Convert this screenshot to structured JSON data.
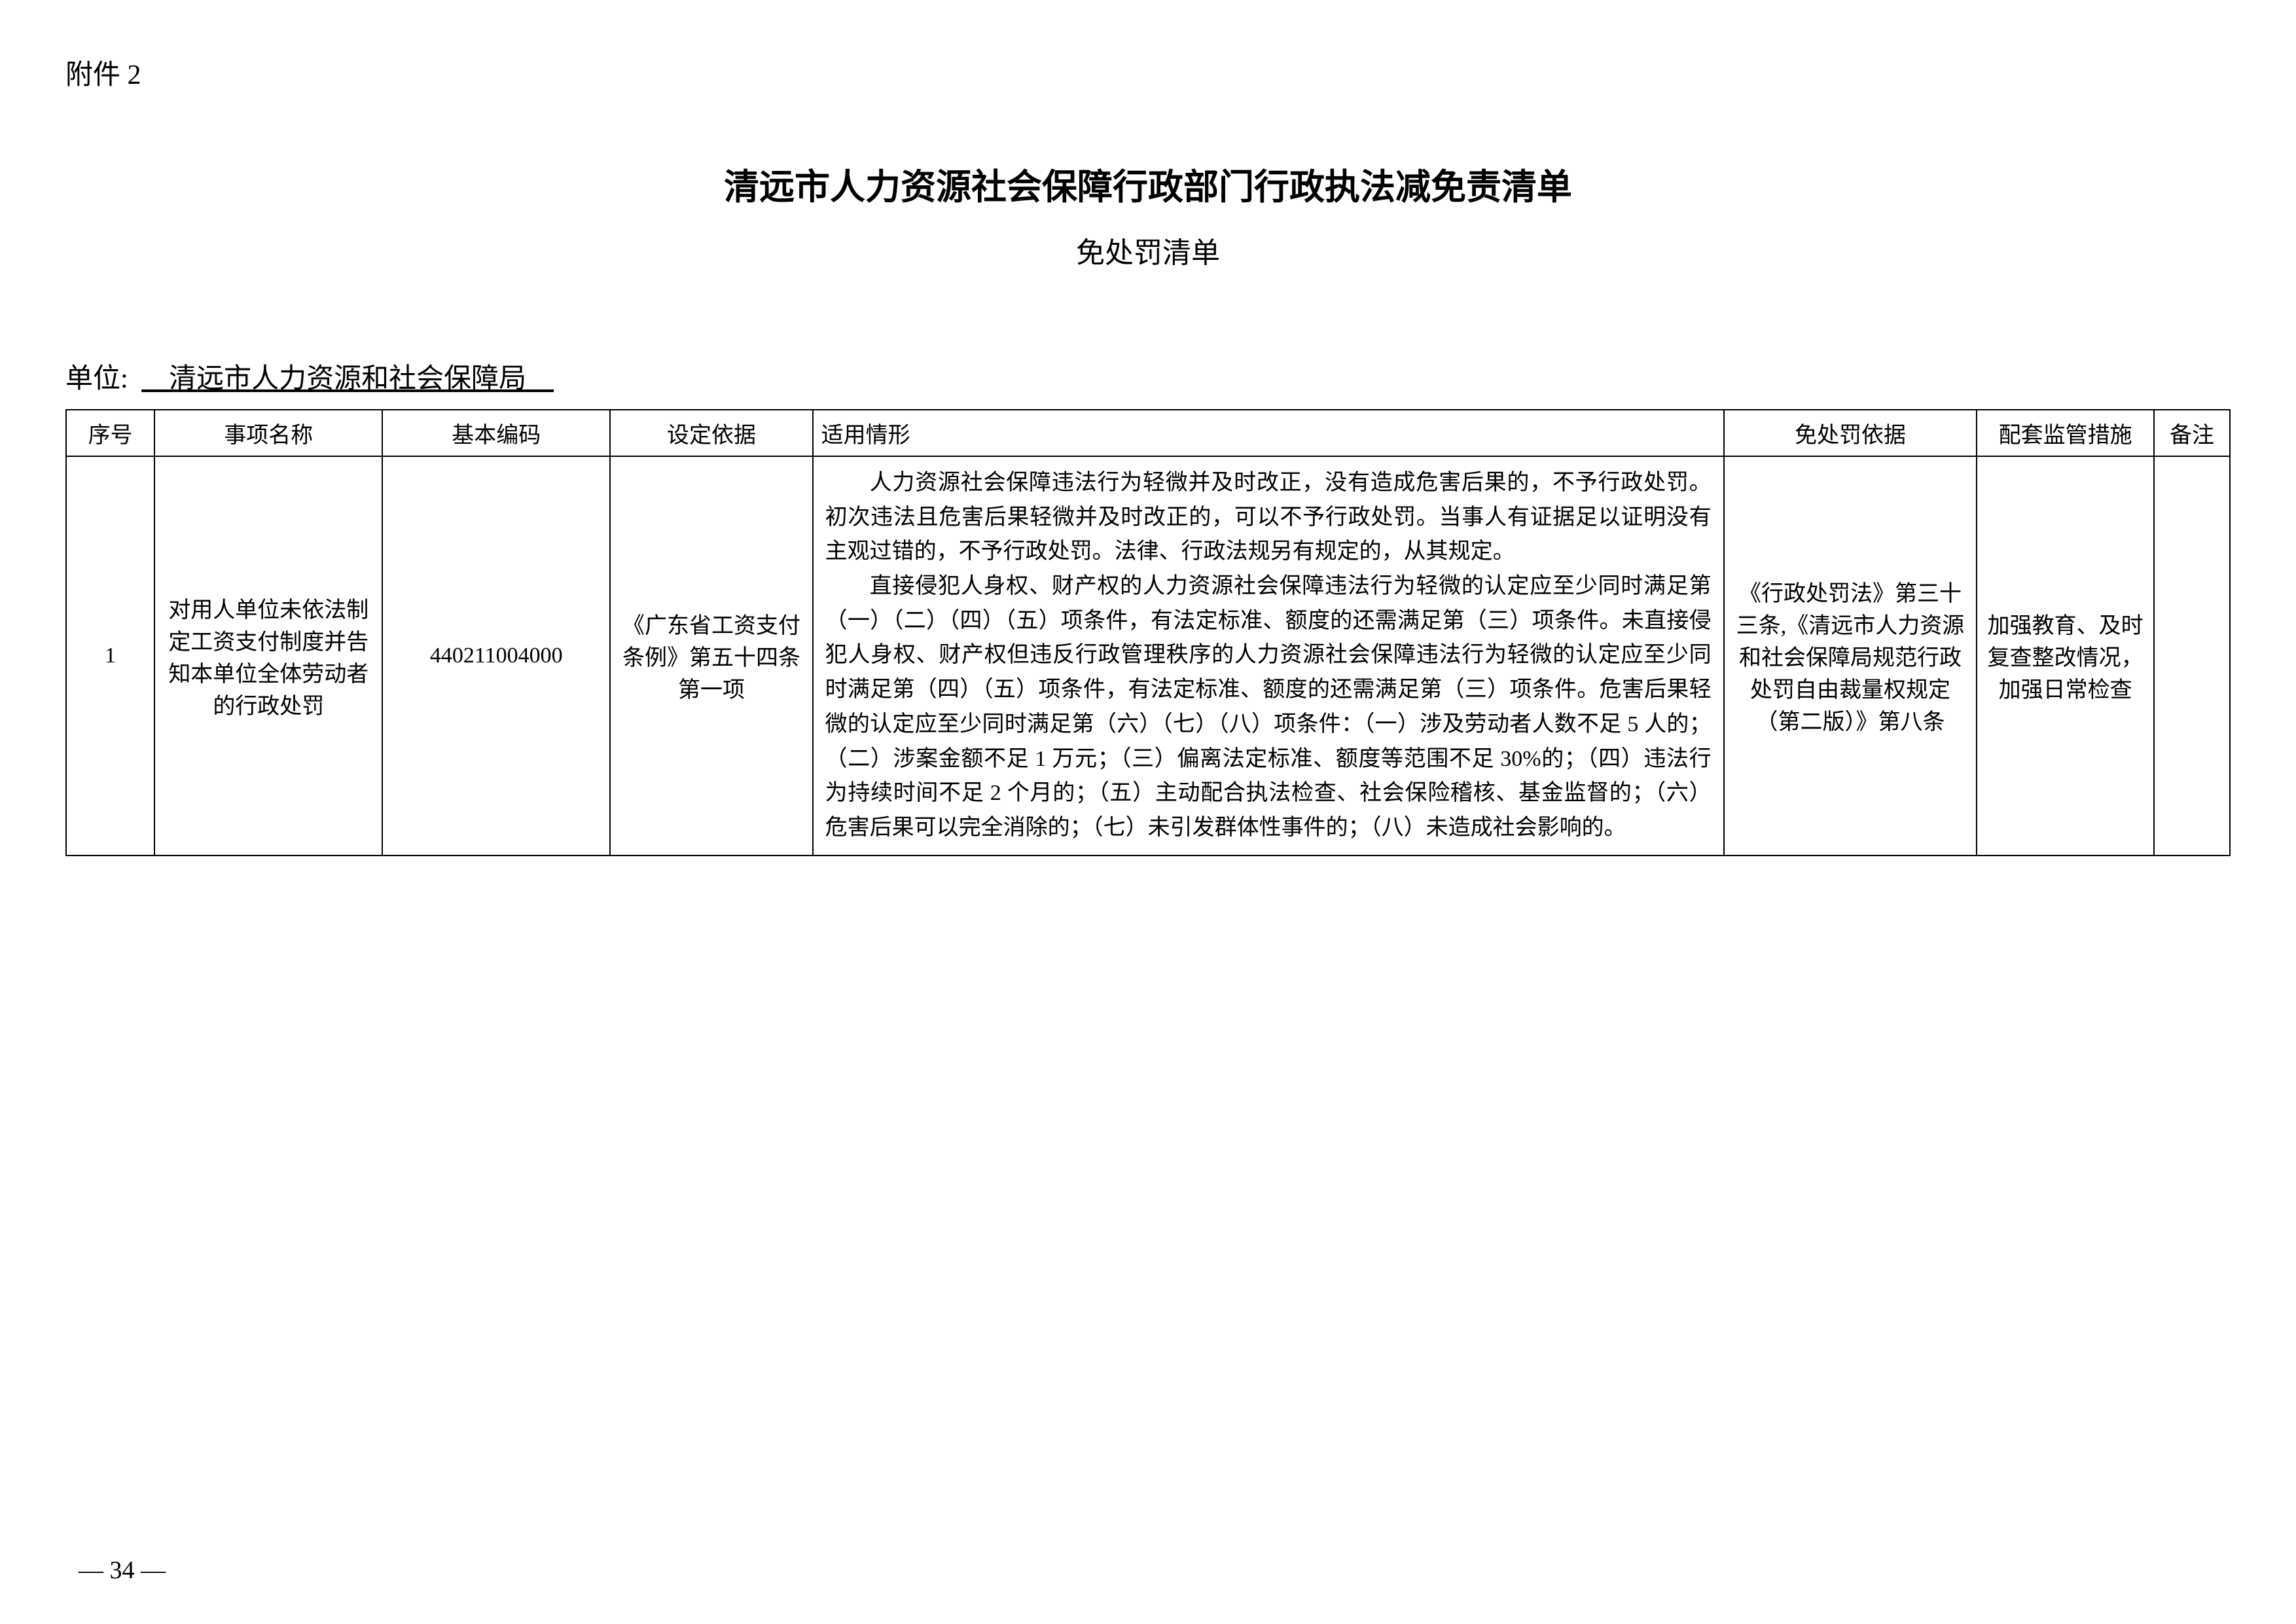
{
  "attachment_label": "附件 2",
  "main_title": "清远市人力资源社会保障行政部门行政执法减免责清单",
  "sub_title": "免处罚清单",
  "unit_label": "单位:",
  "unit_name": "　清远市人力资源和社会保障局　",
  "headers": {
    "index": "序号",
    "name": "事项名称",
    "code": "基本编码",
    "basis": "设定依据",
    "situation": "适用情形",
    "exempt": "免处罚依据",
    "measure": "配套监管措施",
    "note": "备注"
  },
  "row": {
    "index": "1",
    "name": "对用人单位未依法制定工资支付制度并告知本单位全体劳动者的行政处罚",
    "code": "440211004000",
    "basis": "《广东省工资支付条例》第五十四条第一项",
    "situation_p1": "人力资源社会保障违法行为轻微并及时改正，没有造成危害后果的，不予行政处罚。初次违法且危害后果轻微并及时改正的，可以不予行政处罚。当事人有证据足以证明没有主观过错的，不予行政处罚。法律、行政法规另有规定的，从其规定。",
    "situation_p2": "直接侵犯人身权、财产权的人力资源社会保障违法行为轻微的认定应至少同时满足第（一）（二）（四）（五）项条件，有法定标准、额度的还需满足第（三）项条件。未直接侵犯人身权、财产权但违反行政管理秩序的人力资源社会保障违法行为轻微的认定应至少同时满足第（四）（五）项条件，有法定标准、额度的还需满足第（三）项条件。危害后果轻微的认定应至少同时满足第（六）（七）（八）项条件：（一）涉及劳动者人数不足 5 人的；（二）涉案金额不足 1 万元；（三）偏离法定标准、额度等范围不足 30%的；（四）违法行为持续时间不足 2 个月的；（五）主动配合执法检查、社会保险稽核、基金监督的；（六）危害后果可以完全消除的；（七）未引发群体性事件的；（八）未造成社会影响的。",
    "exempt": "《行政处罚法》第三十三条,《清远市人力资源和社会保障局规范行政处罚自由裁量权规定（第二版）》第八条",
    "measure": "加强教育、及时复查整改情况，加强日常检查",
    "note": ""
  },
  "page_number": "— 34 —"
}
